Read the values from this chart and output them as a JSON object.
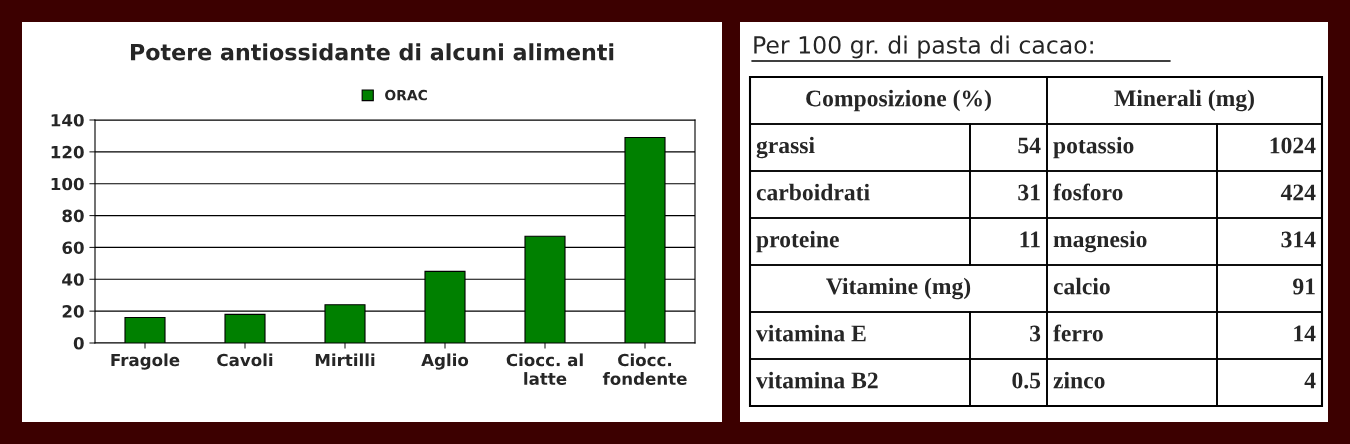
{
  "chart_data": [
    {
      "type": "bar",
      "title": "Potere antiossidante di alcuni alimenti",
      "categories": [
        "Fragole",
        "Cavoli",
        "Mirtilli",
        "Aglio",
        "Ciocc. al\nlatte",
        "Ciocc.\nfondente"
      ],
      "series": [
        {
          "name": "ORAC",
          "color": "#008000",
          "values": [
            16,
            18,
            24,
            45,
            67,
            129
          ]
        }
      ],
      "ylim": [
        0,
        140
      ],
      "yticks": [
        0,
        20,
        40,
        60,
        80,
        100,
        120,
        140
      ],
      "grid": "y",
      "legend": "top"
    },
    {
      "type": "other",
      "title": "Per 100 gr. di pasta di cacao:",
      "annotations": [
        "Composizione (%)",
        "Minerali (mg)",
        "grassi",
        "54",
        "potassio",
        "1024",
        "carboidrati",
        "31",
        "fosforo",
        "424",
        "proteine",
        "11",
        "magnesio",
        "314",
        "Vitamine (mg)",
        "calcio",
        "91",
        "vitamina E",
        "3",
        "ferro",
        "14",
        "vitamina B2",
        "0.5",
        "zinco",
        "4"
      ]
    }
  ]
}
